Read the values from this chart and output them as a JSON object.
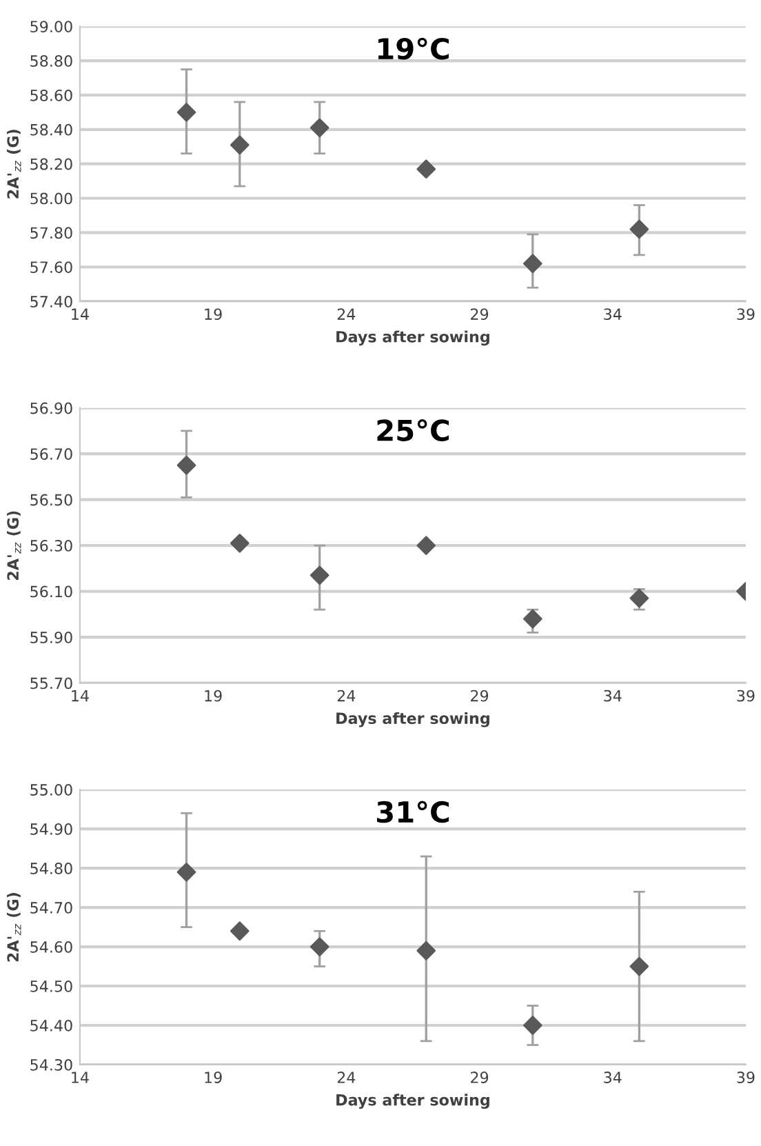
{
  "chart_data": [
    {
      "type": "scatter",
      "title": "19°C",
      "xlabel": "Days after sowing",
      "ylabel": "2A'$_{zz}$ (G)",
      "marker": "diamond",
      "grid": "y",
      "xlim": [
        14,
        39
      ],
      "xticks": [
        14,
        19,
        24,
        29,
        34,
        39
      ],
      "ylim": [
        57.4,
        59.0
      ],
      "yticks": [
        {
          "value": 57.4,
          "label": "57.40"
        },
        {
          "value": 57.6,
          "label": "57.60"
        },
        {
          "value": 57.8,
          "label": "57.80"
        },
        {
          "value": 58.0,
          "label": "58.00"
        },
        {
          "value": 58.2,
          "label": "58.20"
        },
        {
          "value": 58.4,
          "label": "58.40"
        },
        {
          "value": 58.6,
          "label": "58.60"
        },
        {
          "value": 58.8,
          "label": "58.80"
        },
        {
          "value": 59.0,
          "label": "59.00"
        }
      ],
      "series": [
        {
          "color": "#595959",
          "x": [
            18,
            20,
            23,
            27,
            31,
            35
          ],
          "values": [
            58.5,
            58.31,
            58.41,
            58.17,
            57.62,
            57.82
          ],
          "errors": [
            [
              58.26,
              58.75
            ],
            [
              58.07,
              58.56
            ],
            [
              58.26,
              58.56
            ],
            null,
            [
              57.48,
              57.79
            ],
            [
              57.67,
              57.96
            ]
          ]
        }
      ]
    },
    {
      "type": "scatter",
      "title": "25°C",
      "xlabel": "Days after sowing",
      "ylabel": "2A'$_{zz}$ (G)",
      "marker": "diamond",
      "grid": "y",
      "xlim": [
        14,
        39
      ],
      "xticks": [
        14,
        19,
        24,
        29,
        34,
        39
      ],
      "ylim": [
        55.7,
        56.9
      ],
      "yticks": [
        {
          "value": 55.7,
          "label": "55.70"
        },
        {
          "value": 55.9,
          "label": "55.90"
        },
        {
          "value": 56.1,
          "label": "56.10"
        },
        {
          "value": 56.3,
          "label": "56.30"
        },
        {
          "value": 56.5,
          "label": "56.50"
        },
        {
          "value": 56.7,
          "label": "56.70"
        },
        {
          "value": 56.9,
          "label": "56.90"
        }
      ],
      "series": [
        {
          "color": "#595959",
          "x": [
            18,
            20,
            23,
            27,
            31,
            35,
            39
          ],
          "values": [
            56.65,
            56.31,
            56.17,
            56.3,
            55.98,
            56.07,
            56.1
          ],
          "errors": [
            [
              56.51,
              56.8
            ],
            null,
            [
              56.02,
              56.3
            ],
            null,
            [
              55.92,
              56.02
            ],
            [
              56.02,
              56.11
            ],
            null
          ]
        }
      ]
    },
    {
      "type": "scatter",
      "title": "31°C",
      "xlabel": "Days after sowing",
      "ylabel": "2A'$_{zz}$ (G)",
      "marker": "diamond",
      "grid": "y",
      "xlim": [
        14,
        39
      ],
      "xticks": [
        14,
        19,
        24,
        29,
        34,
        39
      ],
      "ylim": [
        54.3,
        55.0
      ],
      "yticks": [
        {
          "value": 54.3,
          "label": "54.30"
        },
        {
          "value": 54.4,
          "label": "54.40"
        },
        {
          "value": 54.5,
          "label": "54.50"
        },
        {
          "value": 54.6,
          "label": "54.60"
        },
        {
          "value": 54.7,
          "label": "54.70"
        },
        {
          "value": 54.8,
          "label": "54.80"
        },
        {
          "value": 54.9,
          "label": "54.90"
        },
        {
          "value": 55.0,
          "label": "55.00"
        }
      ],
      "series": [
        {
          "color": "#595959",
          "x": [
            18,
            20,
            23,
            27,
            31,
            35
          ],
          "values": [
            54.79,
            54.64,
            54.6,
            54.59,
            54.4,
            54.55
          ],
          "errors": [
            [
              54.65,
              54.94
            ],
            null,
            [
              54.55,
              54.64
            ],
            [
              54.36,
              54.83
            ],
            [
              54.35,
              54.45
            ],
            [
              54.36,
              54.74
            ]
          ]
        }
      ]
    }
  ]
}
